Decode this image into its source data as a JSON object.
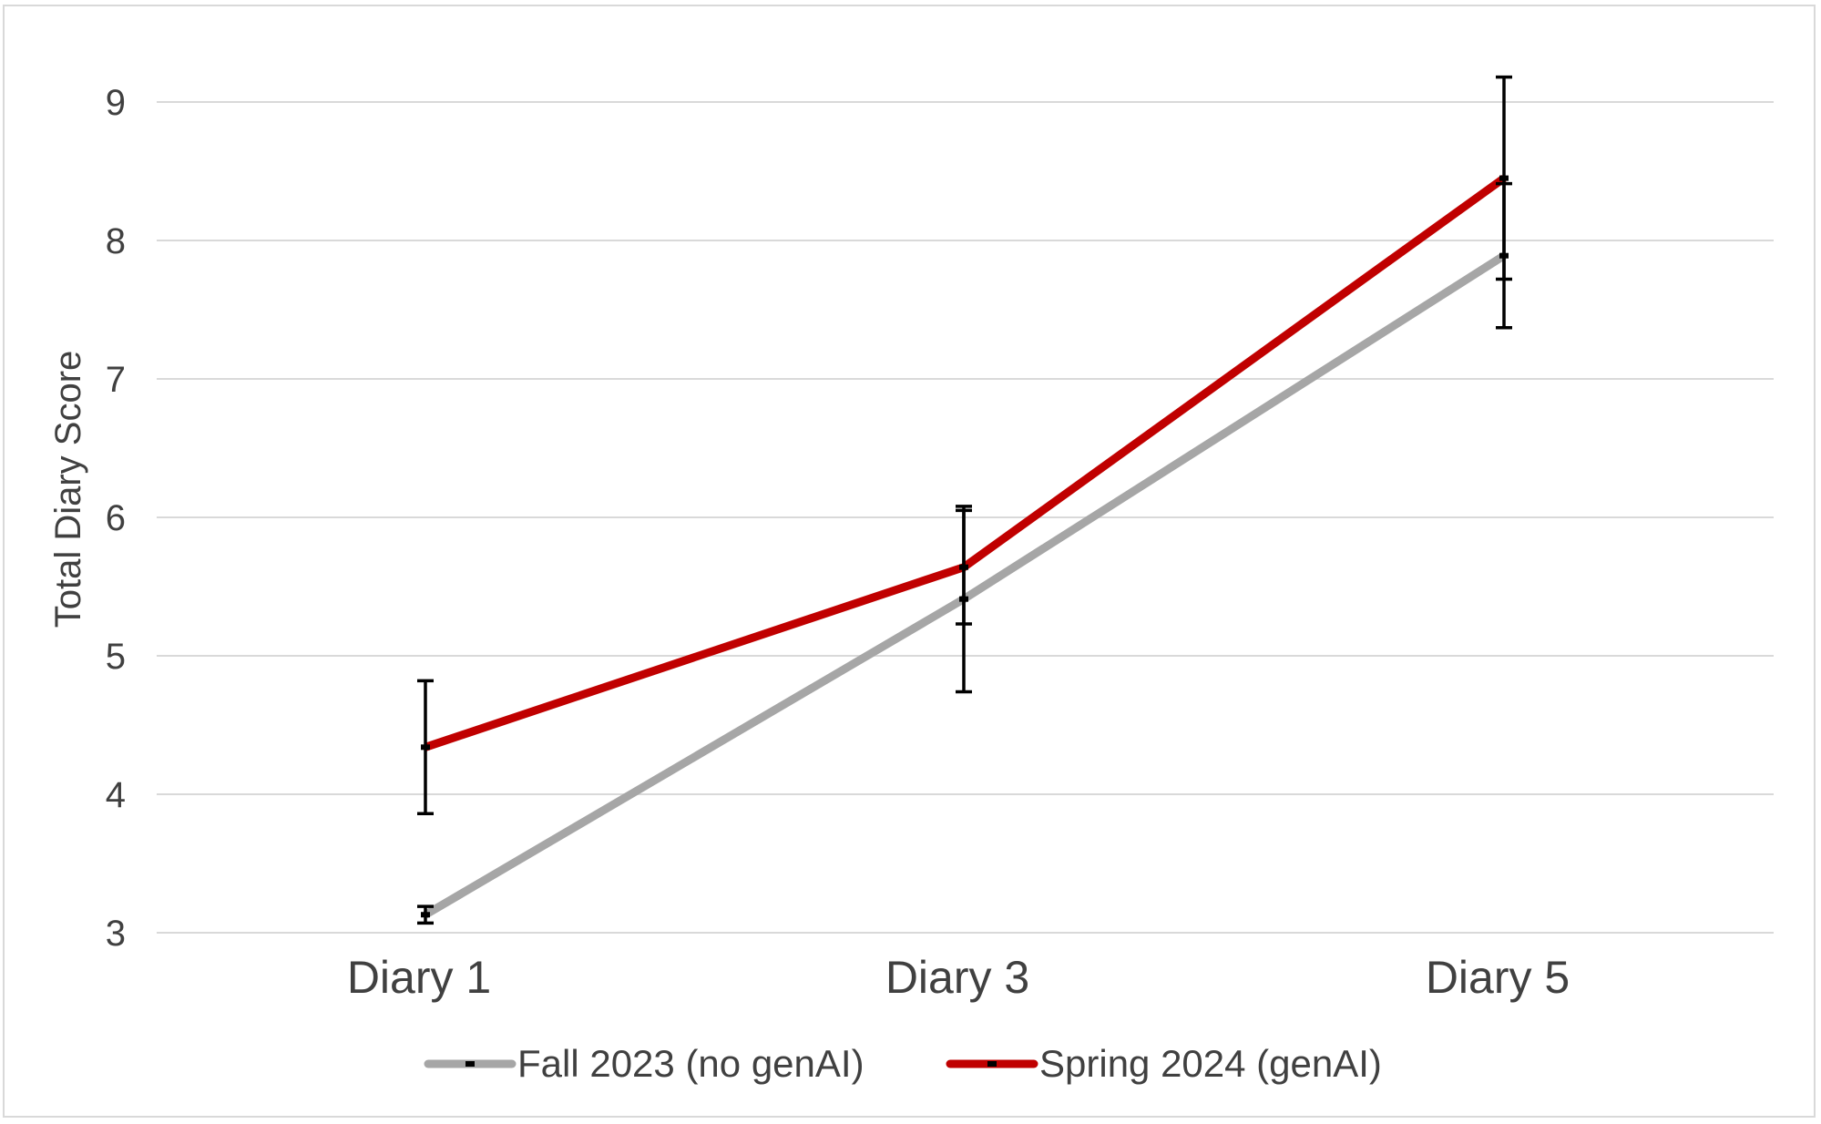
{
  "chart_data": {
    "type": "line",
    "title": "",
    "xlabel": "",
    "ylabel": "Total Diary Score",
    "categories": [
      "Diary 1",
      "Diary 3",
      "Diary 5"
    ],
    "ylim": [
      3,
      9
    ],
    "yticks": [
      3,
      4,
      5,
      6,
      7,
      8,
      9
    ],
    "grid": "horizontal",
    "legend_position": "bottom",
    "series": [
      {
        "name": "Fall 2023 (no genAI)",
        "color": "#a6a6a6",
        "values": [
          3.13,
          5.41,
          7.89
        ],
        "error": [
          0.06,
          0.67,
          0.52
        ]
      },
      {
        "name": "Spring 2024 (genAI)",
        "color": "#c00000",
        "values": [
          4.34,
          5.64,
          8.45
        ],
        "error": [
          0.48,
          0.41,
          0.73
        ]
      }
    ]
  }
}
